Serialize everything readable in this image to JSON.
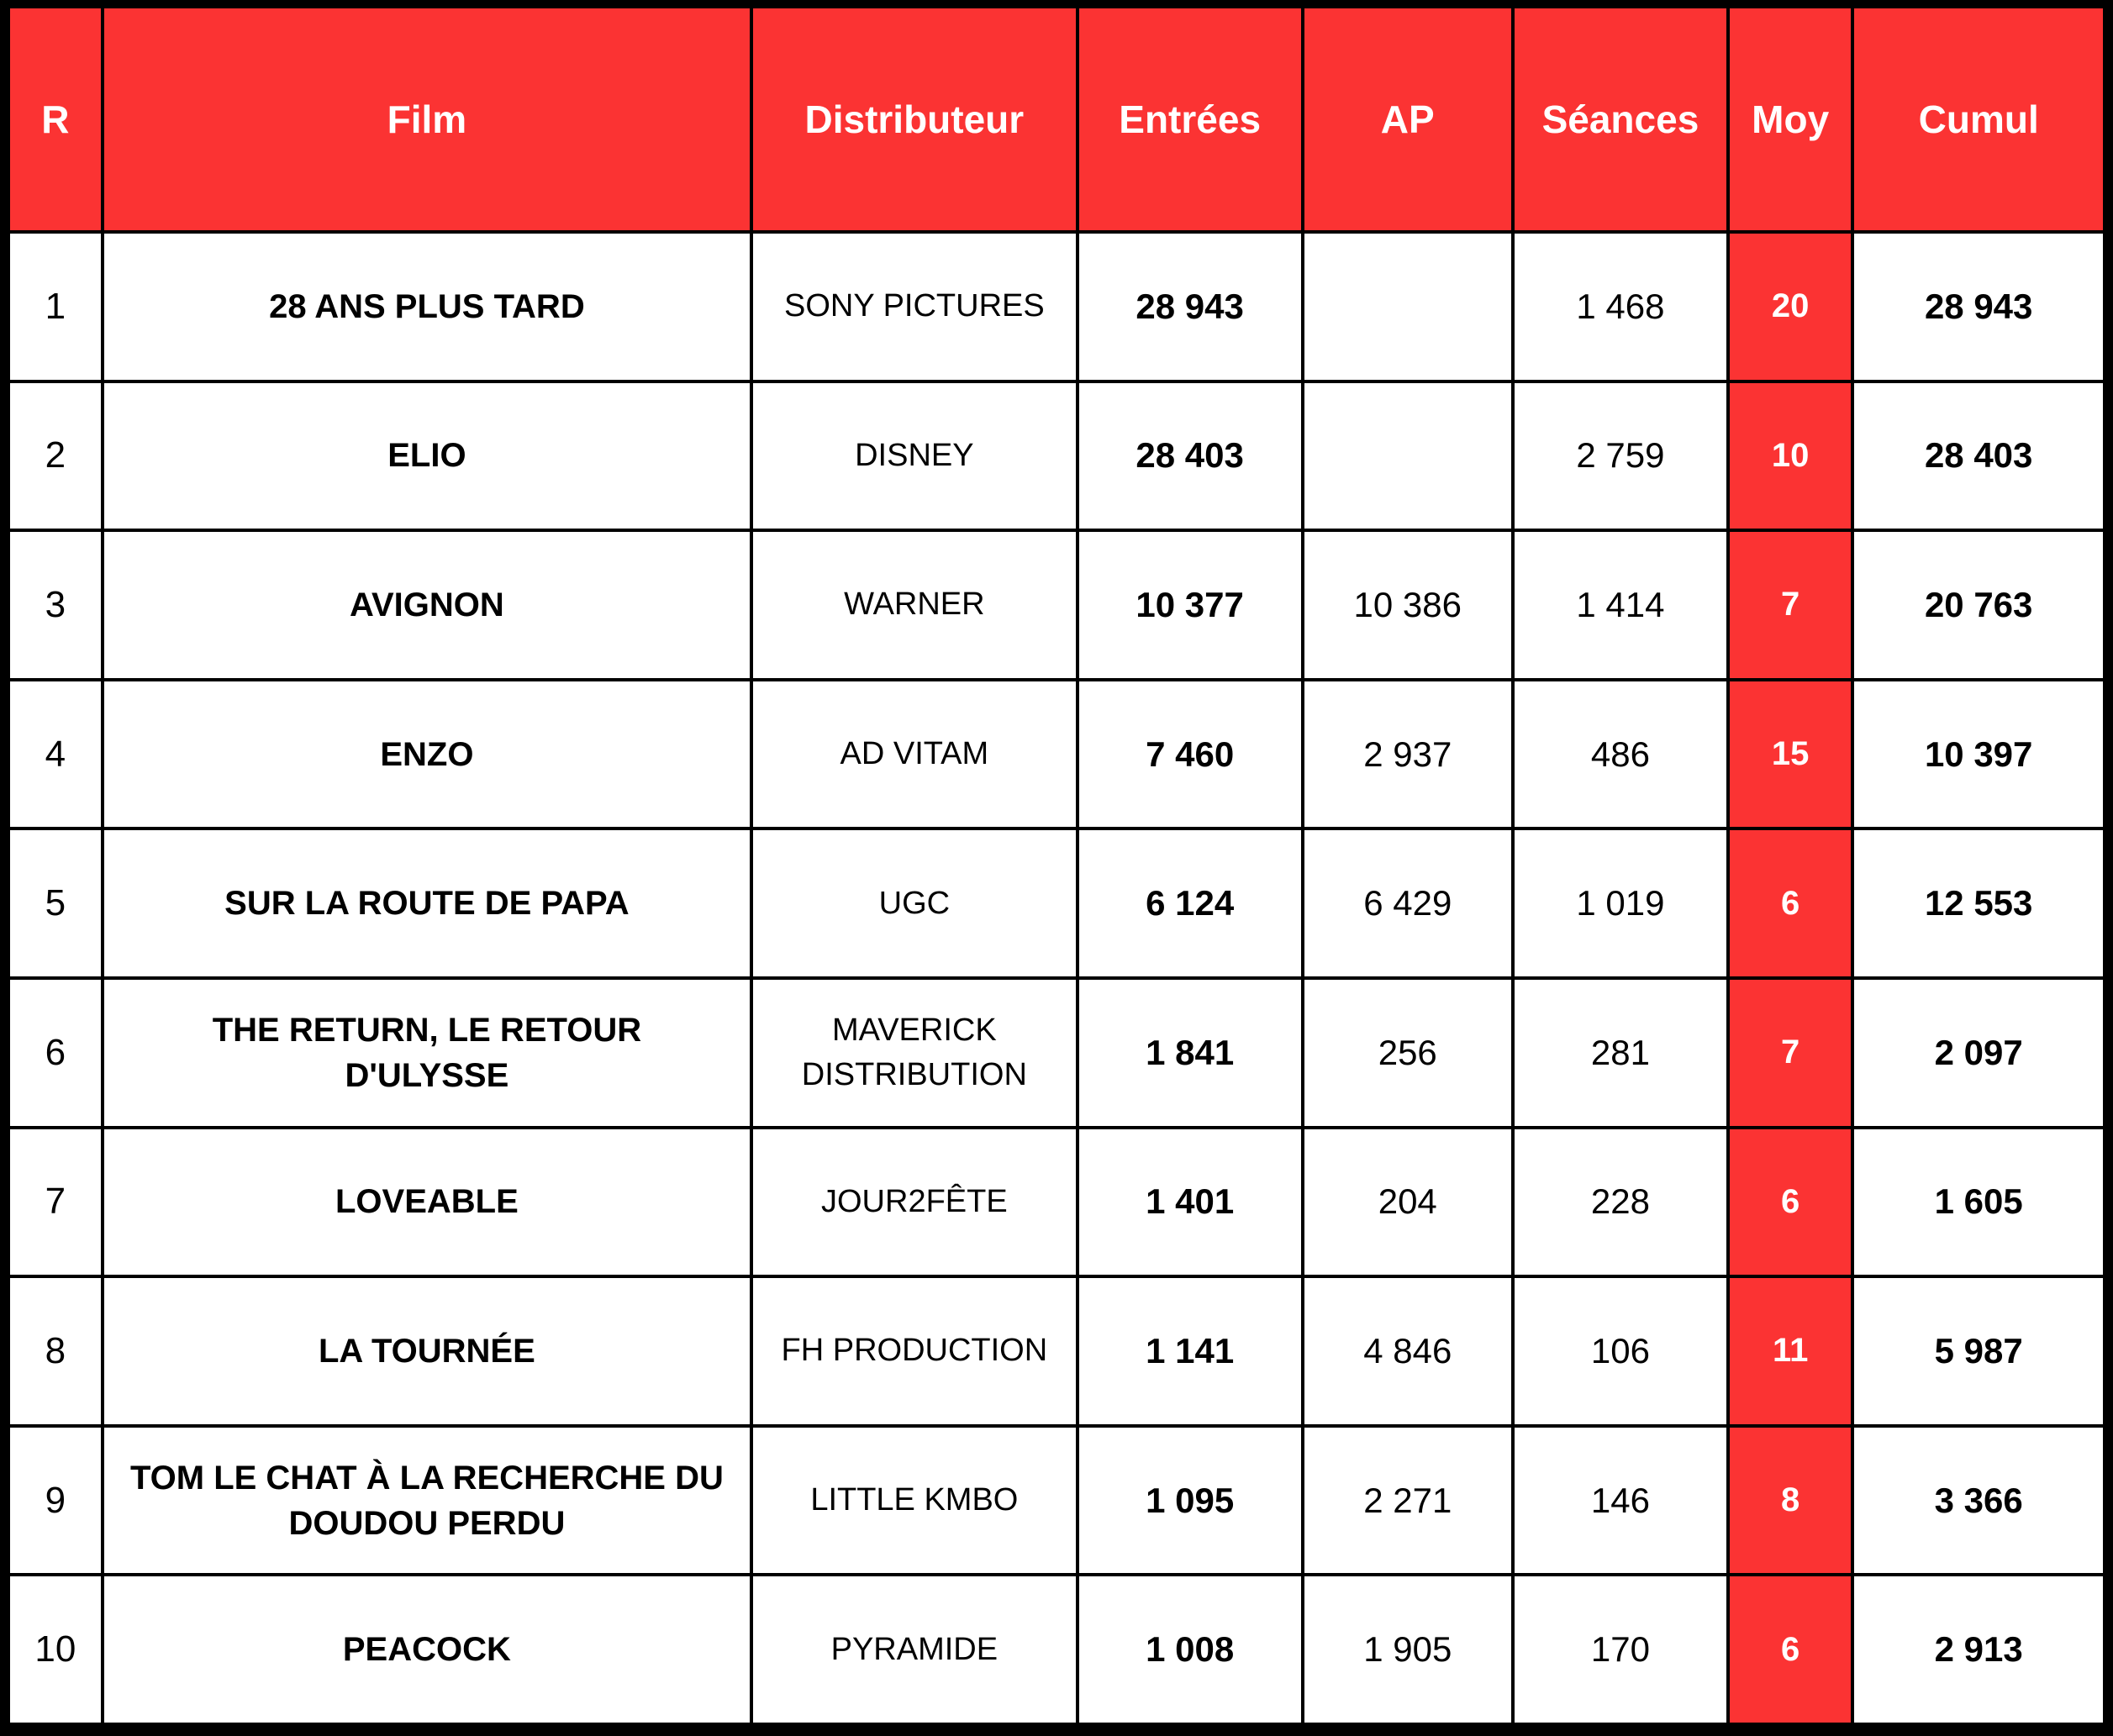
{
  "colors": {
    "accent": "#FB3333",
    "grid_line": "#000000",
    "cell_background": "#FFFFFF",
    "header_text": "#FFFFFF",
    "body_text": "#000000"
  },
  "header": {
    "r": "R",
    "film": "Film",
    "distributeur": "Distributeur",
    "entrees": "Entrées",
    "ap": "AP",
    "seances": "Séances",
    "moy": "Moy",
    "cumul": "Cumul"
  },
  "rows": [
    {
      "r": "1",
      "film": "28 ANS PLUS TARD",
      "distributeur": "SONY PICTURES",
      "entrees": "28 943",
      "ap": "",
      "seances": "1 468",
      "moy": "20",
      "cumul": "28 943"
    },
    {
      "r": "2",
      "film": "ELIO",
      "distributeur": "DISNEY",
      "entrees": "28 403",
      "ap": "",
      "seances": "2 759",
      "moy": "10",
      "cumul": "28 403"
    },
    {
      "r": "3",
      "film": "AVIGNON",
      "distributeur": "WARNER",
      "entrees": "10 377",
      "ap": "10 386",
      "seances": "1 414",
      "moy": "7",
      "cumul": "20 763"
    },
    {
      "r": "4",
      "film": "ENZO",
      "distributeur": "AD VITAM",
      "entrees": "7 460",
      "ap": "2 937",
      "seances": "486",
      "moy": "15",
      "cumul": "10 397"
    },
    {
      "r": "5",
      "film": "SUR LA ROUTE DE PAPA",
      "distributeur": "UGC",
      "entrees": "6 124",
      "ap": "6 429",
      "seances": "1 019",
      "moy": "6",
      "cumul": "12 553"
    },
    {
      "r": "6",
      "film": "THE RETURN, LE RETOUR D'ULYSSE",
      "distributeur": "MAVERICK DISTRIBUTION",
      "entrees": "1 841",
      "ap": "256",
      "seances": "281",
      "moy": "7",
      "cumul": "2 097"
    },
    {
      "r": "7",
      "film": "LOVEABLE",
      "distributeur": "JOUR2FÊTE",
      "entrees": "1 401",
      "ap": "204",
      "seances": "228",
      "moy": "6",
      "cumul": "1 605"
    },
    {
      "r": "8",
      "film": "LA TOURNÉE",
      "distributeur": "FH PRODUCTION",
      "entrees": "1 141",
      "ap": "4 846",
      "seances": "106",
      "moy": "11",
      "cumul": "5 987"
    },
    {
      "r": "9",
      "film": "TOM LE CHAT À LA RECHERCHE DU DOUDOU PERDU",
      "distributeur": "LITTLE KMBO",
      "entrees": "1 095",
      "ap": "2 271",
      "seances": "146",
      "moy": "8",
      "cumul": "3 366"
    },
    {
      "r": "10",
      "film": "PEACOCK",
      "distributeur": "PYRAMIDE",
      "entrees": "1 008",
      "ap": "1 905",
      "seances": "170",
      "moy": "6",
      "cumul": "2 913"
    }
  ]
}
